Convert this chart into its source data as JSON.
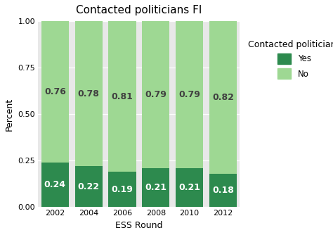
{
  "title": "Contacted politicians FI",
  "xlabel": "ESS Round",
  "ylabel": "Percent",
  "categories": [
    "2002",
    "2004",
    "2006",
    "2008",
    "2010",
    "2012"
  ],
  "yes_values": [
    0.24,
    0.22,
    0.19,
    0.21,
    0.21,
    0.18
  ],
  "no_values": [
    0.76,
    0.78,
    0.81,
    0.79,
    0.79,
    0.82
  ],
  "yes_color": "#2d8a4e",
  "no_color": "#9ed893",
  "fig_bg_color": "#ffffff",
  "panel_bg": "#e8e8e8",
  "bar_width": 0.82,
  "ylim": [
    0,
    1.0
  ],
  "yticks": [
    0.0,
    0.25,
    0.5,
    0.75,
    1.0
  ],
  "legend_title": "Contacted politicians",
  "legend_labels": [
    "Yes",
    "No"
  ],
  "yes_label_color": "#ffffff",
  "no_label_color": "#404040",
  "label_fontsize": 9,
  "title_fontsize": 11,
  "axis_label_fontsize": 9,
  "tick_fontsize": 8
}
